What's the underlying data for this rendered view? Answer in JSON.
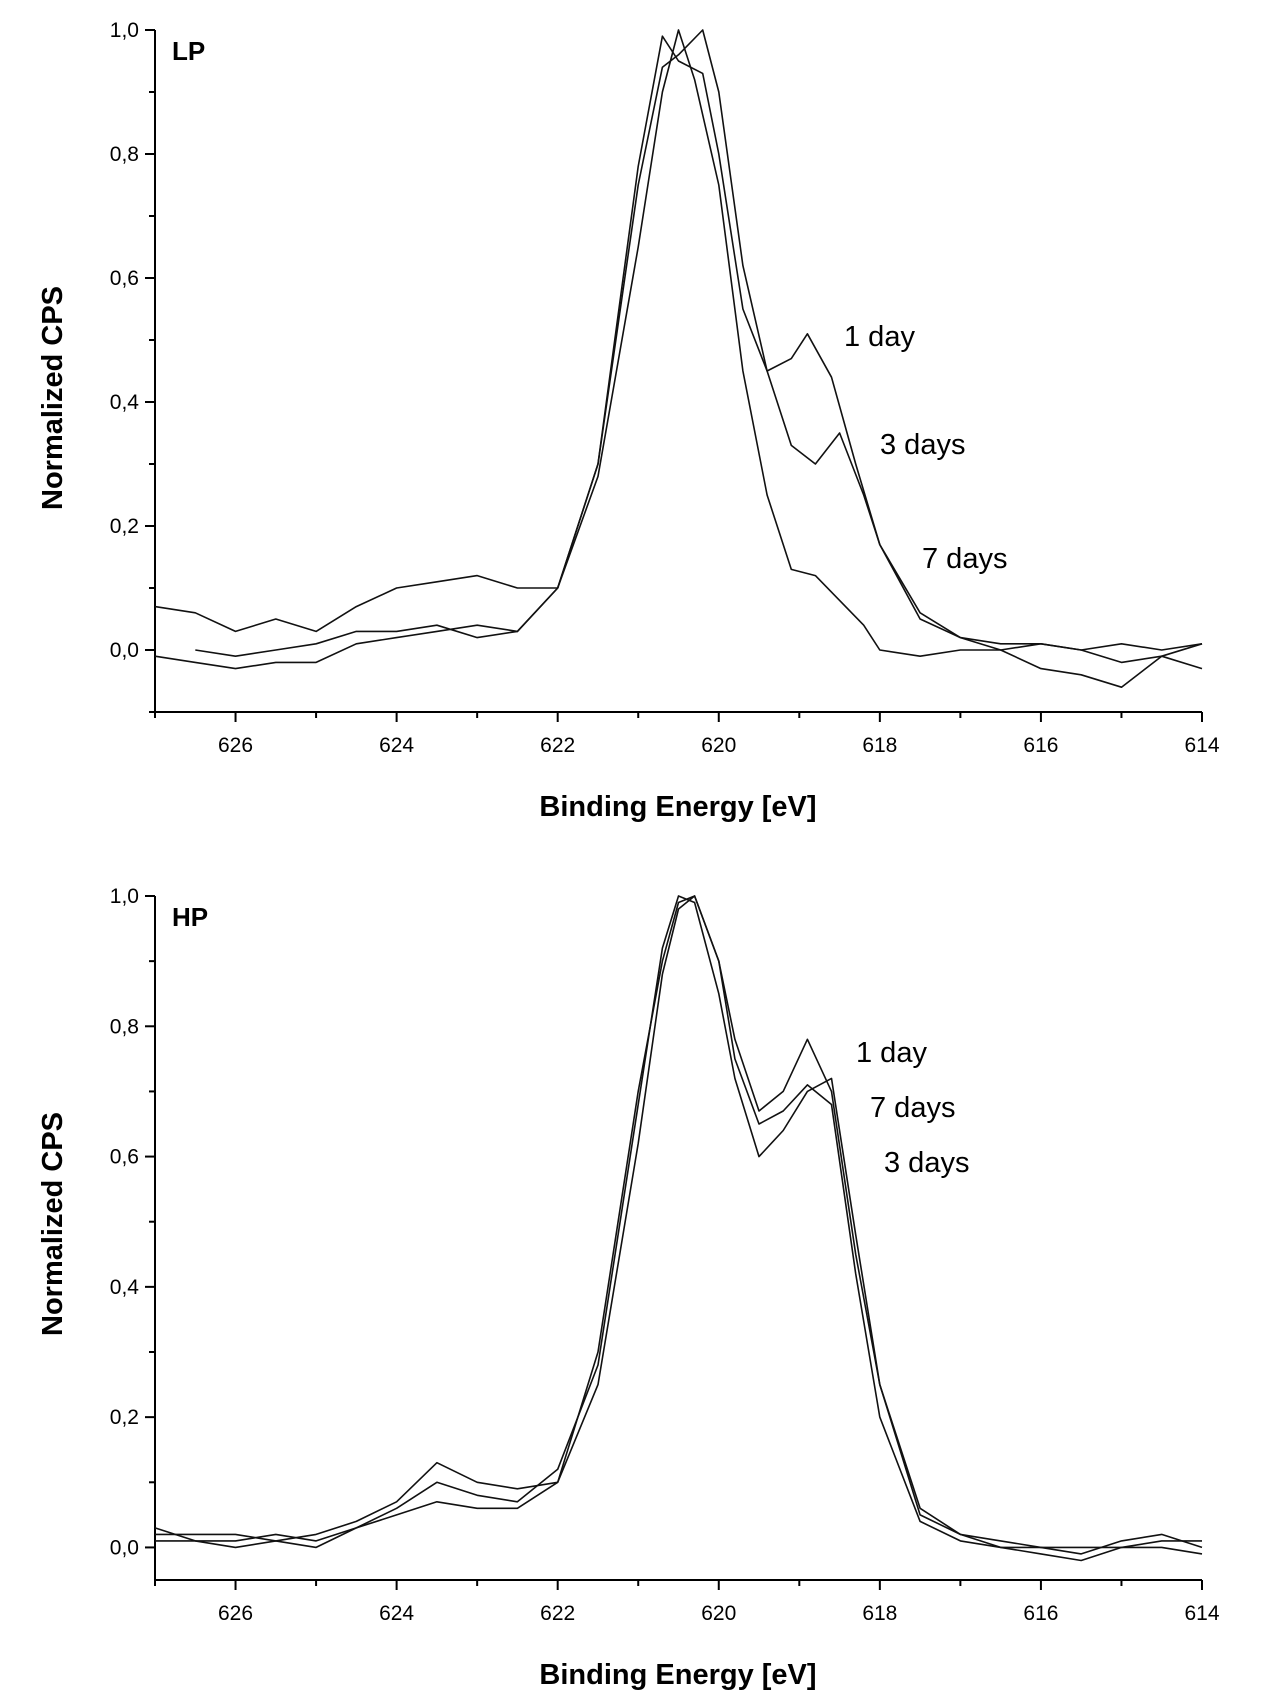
{
  "chart_data": [
    {
      "type": "line",
      "panel_label": "LP",
      "xlabel": "Binding Energy [eV]",
      "ylabel": "Normalized CPS",
      "xlim": [
        627,
        614
      ],
      "ylim": [
        -0.1,
        1.0
      ],
      "x_ticks": [
        "626",
        "624",
        "622",
        "620",
        "618",
        "616",
        "614"
      ],
      "y_ticks": [
        "0,0",
        "0,2",
        "0,4",
        "0,6",
        "0,8",
        "1,0"
      ],
      "series": [
        {
          "name": "1 day",
          "x": [
            627,
            626.5,
            626,
            625.5,
            625,
            624.5,
            624,
            623.5,
            623,
            622.5,
            622,
            621.5,
            621,
            620.7,
            620.5,
            620.2,
            620,
            619.7,
            619.4,
            619.1,
            618.9,
            618.6,
            618.3,
            618,
            617.5,
            617,
            616.5,
            616,
            615.5,
            615,
            614.5,
            614
          ],
          "y": [
            0.07,
            0.06,
            0.03,
            0.05,
            0.03,
            0.07,
            0.1,
            0.11,
            0.12,
            0.1,
            0.1,
            0.3,
            0.75,
            0.94,
            0.96,
            1.0,
            0.9,
            0.62,
            0.45,
            0.47,
            0.51,
            0.44,
            0.3,
            0.17,
            0.06,
            0.02,
            0.01,
            0.01,
            0.0,
            0.01,
            0.0,
            0.01
          ]
        },
        {
          "name": "3 days",
          "x": [
            627,
            626.5,
            626,
            625.5,
            625,
            624.5,
            624,
            623.5,
            623,
            622.5,
            622,
            621.5,
            621,
            620.7,
            620.5,
            620.2,
            620,
            619.7,
            619.4,
            619.1,
            618.8,
            618.5,
            618.2,
            618,
            617.5,
            617,
            616.5,
            616,
            615.5,
            615,
            614.5,
            614
          ],
          "y": [
            -0.01,
            -0.02,
            -0.03,
            -0.02,
            -0.02,
            0.01,
            0.02,
            0.03,
            0.04,
            0.03,
            0.1,
            0.3,
            0.78,
            0.99,
            0.95,
            0.93,
            0.8,
            0.55,
            0.45,
            0.33,
            0.3,
            0.35,
            0.25,
            0.17,
            0.05,
            0.02,
            0.0,
            0.01,
            0.0,
            -0.02,
            -0.01,
            -0.03
          ]
        },
        {
          "name": "7 days",
          "x": [
            626.5,
            626,
            625.5,
            625,
            624.5,
            624,
            623.5,
            623,
            622.5,
            622,
            621.5,
            621,
            620.7,
            620.5,
            620.3,
            620,
            619.7,
            619.4,
            619.1,
            618.8,
            618.5,
            618.2,
            618,
            617.5,
            617,
            616.5,
            616,
            615.5,
            615,
            614.5,
            614
          ],
          "y": [
            0.0,
            -0.01,
            0.0,
            0.01,
            0.03,
            0.03,
            0.04,
            0.02,
            0.03,
            0.1,
            0.28,
            0.65,
            0.9,
            1.0,
            0.92,
            0.75,
            0.45,
            0.25,
            0.13,
            0.12,
            0.08,
            0.04,
            0.0,
            -0.01,
            0.0,
            0.0,
            -0.03,
            -0.04,
            -0.06,
            -0.01,
            0.01
          ]
        }
      ],
      "annotations": [
        "1 day",
        "3 days",
        "7 days"
      ]
    },
    {
      "type": "line",
      "panel_label": "HP",
      "xlabel": "Binding Energy [eV]",
      "ylabel": "Normalized CPS",
      "xlim": [
        627,
        614
      ],
      "ylim": [
        -0.05,
        1.0
      ],
      "x_ticks": [
        "626",
        "624",
        "622",
        "620",
        "618",
        "616",
        "614"
      ],
      "y_ticks": [
        "0,0",
        "0,2",
        "0,4",
        "0,6",
        "0,8",
        "1,0"
      ],
      "series": [
        {
          "name": "1 day",
          "x": [
            627,
            626.5,
            626,
            625.5,
            625,
            624.5,
            624,
            623.5,
            623,
            622.5,
            622,
            621.5,
            621,
            620.7,
            620.5,
            620.3,
            620,
            619.8,
            619.5,
            619.2,
            618.9,
            618.6,
            618.3,
            618,
            617.5,
            617,
            616.5,
            616,
            615.5,
            615,
            614.5,
            614
          ],
          "y": [
            0.02,
            0.02,
            0.02,
            0.01,
            0.02,
            0.04,
            0.07,
            0.13,
            0.1,
            0.09,
            0.1,
            0.3,
            0.7,
            0.9,
            0.99,
            1.0,
            0.9,
            0.78,
            0.67,
            0.7,
            0.78,
            0.7,
            0.45,
            0.25,
            0.06,
            0.02,
            0.0,
            0.0,
            -0.01,
            0.01,
            0.02,
            0.0
          ]
        },
        {
          "name": "7 days",
          "x": [
            627,
            626.5,
            626,
            625.5,
            625,
            624.5,
            624,
            623.5,
            623,
            622.5,
            622,
            621.5,
            621,
            620.7,
            620.5,
            620.3,
            620,
            619.8,
            619.5,
            619.2,
            618.9,
            618.6,
            618.3,
            618,
            617.5,
            617,
            616.5,
            616,
            615.5,
            615,
            614.5,
            614
          ],
          "y": [
            0.03,
            0.01,
            0.01,
            0.02,
            0.01,
            0.03,
            0.06,
            0.1,
            0.08,
            0.07,
            0.12,
            0.28,
            0.68,
            0.92,
            1.0,
            0.99,
            0.85,
            0.72,
            0.6,
            0.64,
            0.7,
            0.72,
            0.48,
            0.25,
            0.05,
            0.02,
            0.01,
            0.0,
            0.0,
            0.0,
            0.01,
            0.01
          ]
        },
        {
          "name": "3 days",
          "x": [
            627,
            626.5,
            626,
            625.5,
            625,
            624.5,
            624,
            623.5,
            623,
            622.5,
            622,
            621.5,
            621,
            620.7,
            620.5,
            620.3,
            620,
            619.8,
            619.5,
            619.2,
            618.9,
            618.6,
            618.3,
            618,
            617.5,
            617,
            616.5,
            616,
            615.5,
            615,
            614.5,
            614
          ],
          "y": [
            0.01,
            0.01,
            0.0,
            0.01,
            0.0,
            0.03,
            0.05,
            0.07,
            0.06,
            0.06,
            0.1,
            0.25,
            0.62,
            0.88,
            0.98,
            1.0,
            0.9,
            0.75,
            0.65,
            0.67,
            0.71,
            0.68,
            0.42,
            0.2,
            0.04,
            0.01,
            0.0,
            -0.01,
            -0.02,
            0.0,
            0.0,
            -0.01
          ]
        }
      ],
      "annotations": [
        "1 day",
        "7 days",
        "3 days"
      ]
    }
  ]
}
